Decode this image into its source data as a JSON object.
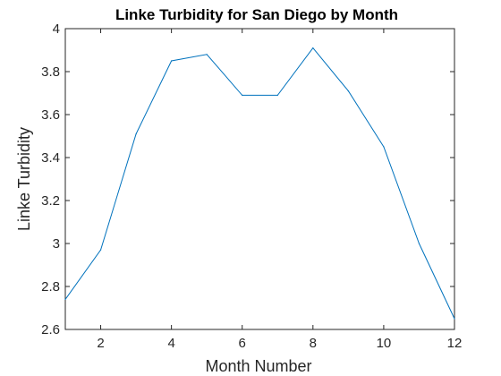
{
  "chart_data": {
    "type": "line",
    "title": "Linke Turbidity for San Diego by Month",
    "xlabel": "Month Number",
    "ylabel": "Linke Turbidity",
    "xlim": [
      1,
      12
    ],
    "ylim": [
      2.6,
      4
    ],
    "xticks": [
      2,
      4,
      6,
      8,
      10,
      12
    ],
    "yticks": [
      2.6,
      2.8,
      3,
      3.2,
      3.4,
      3.6,
      3.8,
      4
    ],
    "xtick_labels": [
      "2",
      "4",
      "6",
      "8",
      "10",
      "12"
    ],
    "ytick_labels": [
      "2.6",
      "2.8",
      "3",
      "3.2",
      "3.4",
      "3.6",
      "3.8",
      "4"
    ],
    "grid": false,
    "series": [
      {
        "color": "#0072BD",
        "x": [
          1,
          2,
          3,
          4,
          5,
          6,
          7,
          8,
          9,
          10,
          11,
          12
        ],
        "y": [
          2.74,
          2.97,
          3.51,
          3.85,
          3.88,
          3.69,
          3.69,
          3.91,
          3.71,
          3.45,
          3.0,
          2.65
        ]
      }
    ],
    "axis_color": "#262626"
  }
}
